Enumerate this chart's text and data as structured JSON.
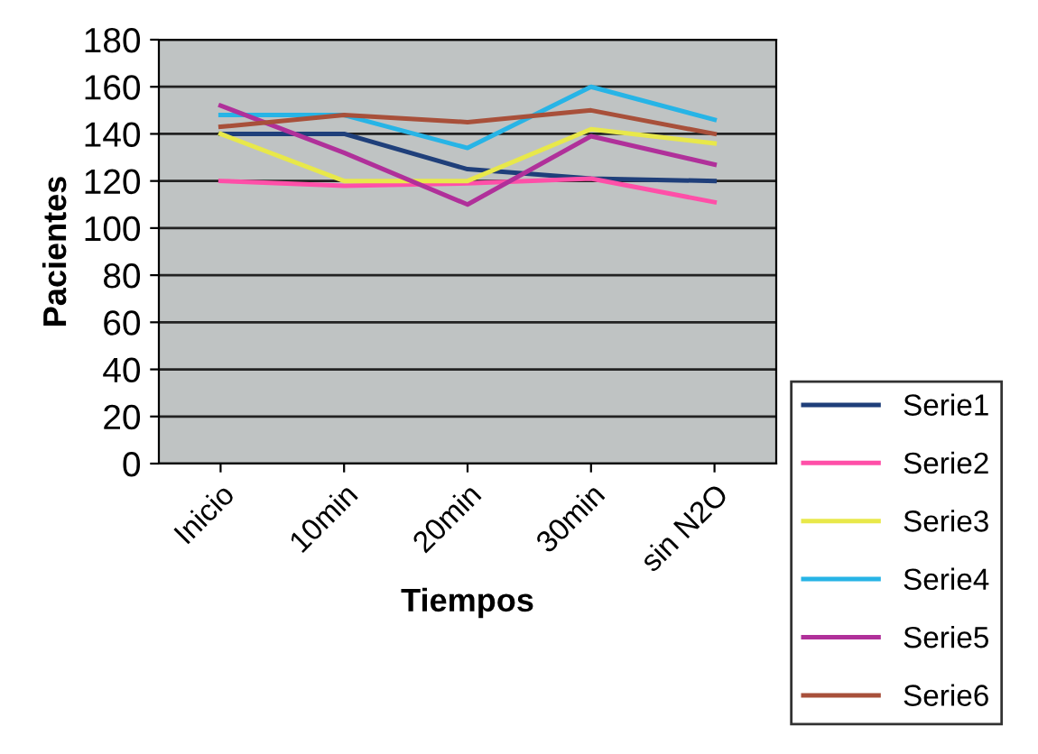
{
  "chart_data": {
    "type": "line",
    "xlabel": "Tiempos",
    "ylabel": "Pacientes",
    "categories": [
      "Inicio",
      "10min",
      "20min",
      "30min",
      "sin N2O"
    ],
    "series": [
      {
        "name": "Serie1",
        "color": "#1f3f7a",
        "values": [
          140,
          140,
          125,
          121,
          120
        ]
      },
      {
        "name": "Serie2",
        "color": "#ff4fa8",
        "values": [
          120,
          118,
          119,
          121,
          111
        ]
      },
      {
        "name": "Serie3",
        "color": "#e8e84a",
        "values": [
          140,
          120,
          120,
          142,
          136
        ]
      },
      {
        "name": "Serie4",
        "color": "#27b4e6",
        "values": [
          148,
          148,
          134,
          160,
          146
        ]
      },
      {
        "name": "Serie5",
        "color": "#b0309a",
        "values": [
          152,
          132,
          110,
          139,
          127
        ]
      },
      {
        "name": "Serie6",
        "color": "#a8503a",
        "values": [
          143,
          148,
          145,
          150,
          140
        ]
      }
    ],
    "ylim": [
      0,
      180
    ],
    "yticks": [
      0,
      20,
      40,
      60,
      80,
      100,
      120,
      140,
      160,
      180
    ],
    "grid": "y",
    "legend": "bottom right",
    "marker": "none",
    "line_style": "solid"
  }
}
